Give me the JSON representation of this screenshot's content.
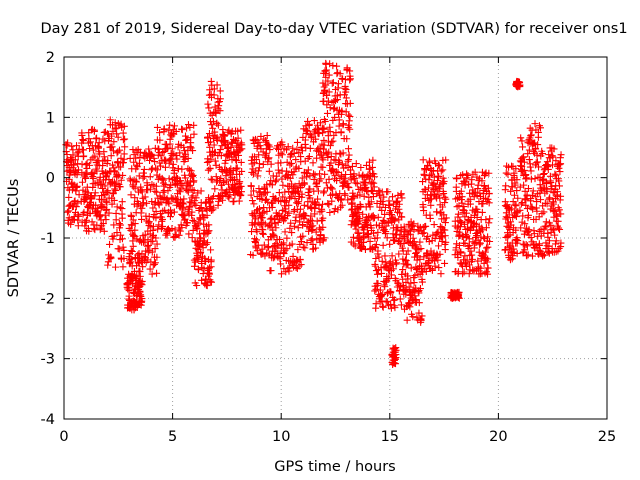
{
  "chart_data": {
    "type": "scatter",
    "title": "Day 281 of 2019, Sidereal Day-to-day VTEC variation (SDTVAR) for receiver ons1",
    "xlabel": "GPS time / hours",
    "ylabel": "SDTVAR / TECUs",
    "xlim": [
      0,
      25
    ],
    "ylim": [
      -4,
      2
    ],
    "xticks": [
      "0",
      "5",
      "10",
      "15",
      "20",
      "25"
    ],
    "yticks": [
      "-4",
      "-3",
      "-2",
      "-1",
      "0",
      "1",
      "2"
    ],
    "grid": true,
    "marker": "plus",
    "color": "#ff0000",
    "series": [
      {
        "name": "ons1",
        "clusters": [
          {
            "x0": 0.1,
            "x1": 0.7,
            "y": [
              -0.8,
              0.6
            ]
          },
          {
            "x0": 0.8,
            "x1": 2.0,
            "y": [
              -0.9,
              0.8
            ]
          },
          {
            "x0": 2.0,
            "x1": 2.8,
            "y": [
              -1.5,
              1.0
            ]
          },
          {
            "x0": 2.9,
            "x1": 3.6,
            "y": [
              -2.2,
              -1.6
            ]
          },
          {
            "x0": 3.0,
            "x1": 4.3,
            "y": [
              -1.6,
              0.5
            ]
          },
          {
            "x0": 4.3,
            "x1": 6.0,
            "y": [
              -1.0,
              0.9
            ]
          },
          {
            "x0": 6.0,
            "x1": 6.8,
            "y": [
              -1.8,
              -0.2
            ]
          },
          {
            "x0": 6.6,
            "x1": 7.2,
            "y": [
              -0.6,
              1.6
            ]
          },
          {
            "x0": 7.2,
            "x1": 8.2,
            "y": [
              -0.4,
              0.8
            ]
          },
          {
            "x0": 8.6,
            "x1": 9.4,
            "y": [
              -1.3,
              0.7
            ]
          },
          {
            "x0": 9.4,
            "x1": 11.0,
            "y": [
              -1.6,
              0.6
            ]
          },
          {
            "x0": 11.0,
            "x1": 12.0,
            "y": [
              -1.2,
              1.0
            ]
          },
          {
            "x0": 11.9,
            "x1": 13.2,
            "y": [
              -0.6,
              1.9
            ]
          },
          {
            "x0": 13.2,
            "x1": 14.3,
            "y": [
              -1.2,
              0.3
            ]
          },
          {
            "x0": 14.3,
            "x1": 15.6,
            "y": [
              -2.2,
              -0.2
            ]
          },
          {
            "x0": 15.1,
            "x1": 15.3,
            "y": [
              -3.1,
              -2.8
            ]
          },
          {
            "x0": 15.6,
            "x1": 16.5,
            "y": [
              -2.4,
              -0.7
            ]
          },
          {
            "x0": 16.5,
            "x1": 17.6,
            "y": [
              -1.6,
              0.3
            ]
          },
          {
            "x0": 17.8,
            "x1": 18.2,
            "y": [
              -2.0,
              -1.9
            ]
          },
          {
            "x0": 18.0,
            "x1": 19.6,
            "y": [
              -1.6,
              0.1
            ]
          },
          {
            "x0": 20.3,
            "x1": 20.9,
            "y": [
              -1.4,
              0.2
            ]
          },
          {
            "x0": 20.8,
            "x1": 21.0,
            "y": [
              1.5,
              1.6
            ]
          },
          {
            "x0": 21.0,
            "x1": 22.0,
            "y": [
              -1.3,
              0.9
            ]
          },
          {
            "x0": 22.0,
            "x1": 22.9,
            "y": [
              -1.3,
              0.5
            ]
          }
        ]
      }
    ]
  }
}
